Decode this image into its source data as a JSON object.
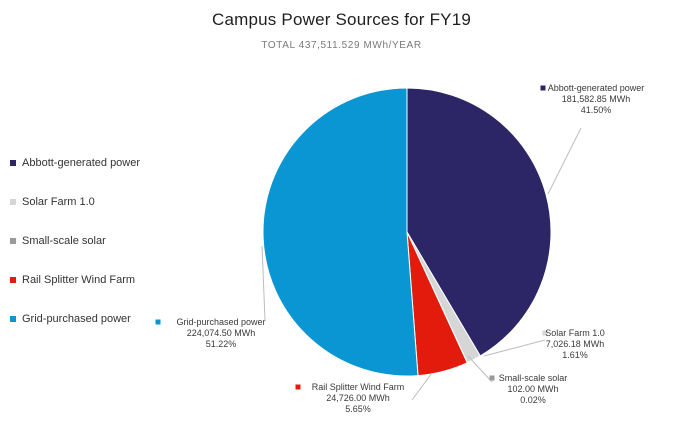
{
  "chart_data": {
    "type": "pie",
    "title": "Campus Power Sources for FY19",
    "subtitle": "TOTAL 437,511.529 MWh/YEAR",
    "slices": [
      {
        "name": "Abbott-generated power",
        "value": 181582.85,
        "percent": 41.5,
        "value_label": "181,582.85 MWh",
        "percent_label": "41.50%",
        "color": "#2c2566"
      },
      {
        "name": "Solar Farm 1.0",
        "value": 7026.18,
        "percent": 1.61,
        "value_label": "7,026.18 MWh",
        "percent_label": "1.61%",
        "color": "#d6d6d6"
      },
      {
        "name": "Small-scale solar",
        "value": 102.0,
        "percent": 0.02,
        "value_label": "102.00 MWh",
        "percent_label": "0.02%",
        "color": "#9a9a9a"
      },
      {
        "name": "Rail Splitter Wind Farm",
        "value": 24726.0,
        "percent": 5.65,
        "value_label": "24,726.00 MWh",
        "percent_label": "5.65%",
        "color": "#e31b0d"
      },
      {
        "name": "Grid-purchased power",
        "value": 224074.5,
        "percent": 51.22,
        "value_label": "224,074.50 MWh",
        "percent_label": "51.22%",
        "color": "#0996d2"
      }
    ],
    "legend_position": "left"
  }
}
